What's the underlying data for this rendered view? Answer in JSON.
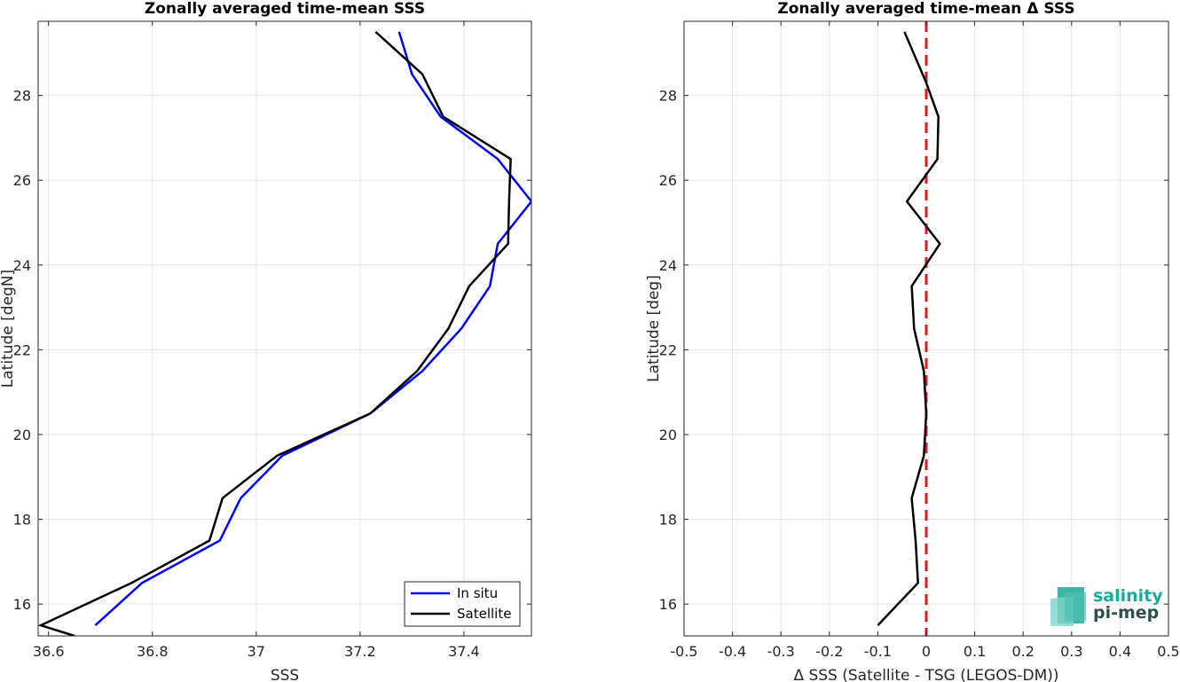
{
  "chart_data": [
    {
      "type": "line",
      "title": "Zonally averaged time-mean SSS",
      "xlabel": "SSS",
      "ylabel": "Latitude [degN]",
      "xlim": [
        36.58,
        37.53
      ],
      "ylim": [
        15.25,
        29.75
      ],
      "grid": true,
      "legend_position": "bottom-right",
      "x_ticks": [
        36.6,
        36.8,
        37.0,
        37.2,
        37.4
      ],
      "x_tick_labels": [
        "36.6",
        "36.8",
        "37",
        "37.2",
        "37.4"
      ],
      "y_ticks": [
        16,
        18,
        20,
        22,
        24,
        26,
        28
      ],
      "y_tick_labels": [
        "16",
        "18",
        "20",
        "22",
        "24",
        "26",
        "28"
      ],
      "series": [
        {
          "name": "In situ",
          "color": "#0000ff",
          "points": [
            [
              37.275,
              29.5
            ],
            [
              37.3,
              28.5
            ],
            [
              37.355,
              27.5
            ],
            [
              37.465,
              26.5
            ],
            [
              37.53,
              25.5
            ],
            [
              37.465,
              24.5
            ],
            [
              37.45,
              23.5
            ],
            [
              37.395,
              22.5
            ],
            [
              37.32,
              21.5
            ],
            [
              37.22,
              20.5
            ],
            [
              37.05,
              19.5
            ],
            [
              36.97,
              18.5
            ],
            [
              36.93,
              17.5
            ],
            [
              36.78,
              16.5
            ],
            [
              36.69,
              15.5
            ]
          ]
        },
        {
          "name": "Satellite",
          "color": "#000000",
          "points": [
            [
              37.23,
              29.5
            ],
            [
              37.32,
              28.5
            ],
            [
              37.36,
              27.5
            ],
            [
              37.49,
              26.5
            ],
            [
              37.487,
              25.5
            ],
            [
              37.485,
              24.5
            ],
            [
              37.41,
              23.5
            ],
            [
              37.37,
              22.5
            ],
            [
              37.31,
              21.5
            ],
            [
              37.22,
              20.5
            ],
            [
              37.04,
              19.5
            ],
            [
              36.935,
              18.5
            ],
            [
              36.91,
              17.5
            ],
            [
              36.76,
              16.5
            ],
            [
              36.585,
              15.5
            ],
            [
              36.65,
              15.25
            ]
          ]
        }
      ]
    },
    {
      "type": "line",
      "title": "Zonally averaged time-mean Δ SSS",
      "xlabel": "Δ SSS (Satellite - TSG (LEGOS-DM))",
      "ylabel": "Latitude [deg]",
      "xlim": [
        -0.5,
        0.5
      ],
      "ylim": [
        15.25,
        29.75
      ],
      "grid": true,
      "x_ticks": [
        -0.5,
        -0.4,
        -0.3,
        -0.2,
        -0.1,
        0,
        0.1,
        0.2,
        0.3,
        0.4,
        0.5
      ],
      "x_tick_labels": [
        "-0.5",
        "-0.4",
        "-0.3",
        "-0.2",
        "-0.1",
        "0",
        "0.1",
        "0.2",
        "0.3",
        "0.4",
        "0.5"
      ],
      "y_ticks": [
        16,
        18,
        20,
        22,
        24,
        26,
        28
      ],
      "y_tick_labels": [
        "16",
        "18",
        "20",
        "22",
        "24",
        "26",
        "28"
      ],
      "reference_line": {
        "x": 0,
        "color": "#e31a1c",
        "style": "dashed"
      },
      "series": [
        {
          "color": "#000000",
          "points": [
            [
              -0.045,
              29.5
            ],
            [
              0.0,
              28.3
            ],
            [
              0.025,
              27.5
            ],
            [
              0.023,
              26.5
            ],
            [
              -0.04,
              25.5
            ],
            [
              0.028,
              24.5
            ],
            [
              -0.03,
              23.5
            ],
            [
              -0.025,
              22.5
            ],
            [
              -0.005,
              21.5
            ],
            [
              0.0,
              20.5
            ],
            [
              -0.005,
              19.5
            ],
            [
              -0.03,
              18.5
            ],
            [
              -0.022,
              17.5
            ],
            [
              -0.017,
              16.5
            ],
            [
              -0.1,
              15.5
            ]
          ]
        }
      ]
    }
  ],
  "logo": {
    "line1": "salinity",
    "line2": "pi-mep",
    "color_main": "#1aa99b",
    "color_dark": "#2f4f4f"
  }
}
